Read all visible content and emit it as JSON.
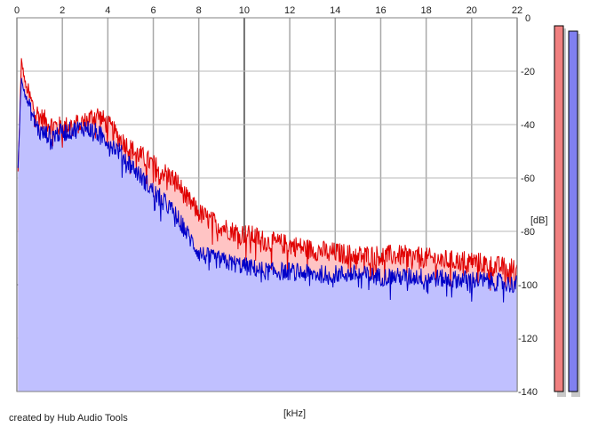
{
  "chart_data": {
    "type": "area",
    "xlabel": "[kHz]",
    "ylabel": "[dB]",
    "xlim": [
      0,
      22
    ],
    "ylim": [
      -140,
      0
    ],
    "x_ticks": [
      0,
      2,
      4,
      6,
      8,
      10,
      12,
      14,
      16,
      18,
      20,
      22
    ],
    "y_ticks": [
      0,
      -20,
      -40,
      -60,
      -80,
      -100,
      -120,
      -140
    ],
    "grid": true,
    "series": [
      {
        "color": "#e00000",
        "fill": "#ffc4c4",
        "x": [
          0.05,
          0.2,
          0.4,
          0.7,
          1,
          1.5,
          2,
          2.5,
          3,
          3.5,
          4,
          4.5,
          5,
          5.5,
          6,
          6.5,
          7,
          7.5,
          8,
          8.5,
          9,
          9.5,
          10,
          10.5,
          11,
          12,
          13,
          14,
          15,
          16,
          17,
          18,
          19,
          20,
          21,
          22
        ],
        "values": [
          -58,
          -16,
          -26,
          -33,
          -37,
          -40,
          -41,
          -40,
          -39,
          -36,
          -40,
          -45,
          -49,
          -52,
          -55,
          -58,
          -61,
          -68,
          -73,
          -76,
          -78,
          -80,
          -81,
          -82,
          -84,
          -85,
          -87,
          -88,
          -89,
          -89,
          -89,
          -90,
          -91,
          -91,
          -93,
          -94
        ]
      },
      {
        "color": "#0000c8",
        "fill": "#c0c0ff",
        "x": [
          0.05,
          0.2,
          0.4,
          0.7,
          1,
          1.5,
          2,
          2.5,
          3,
          3.5,
          4,
          4.5,
          5,
          5.5,
          6,
          6.5,
          7,
          7.5,
          8,
          8.5,
          9,
          9.5,
          10,
          10.5,
          11,
          12,
          13,
          14,
          15,
          16,
          17,
          18,
          19,
          20,
          21,
          22
        ],
        "values": [
          -55,
          -22,
          -30,
          -37,
          -43,
          -44,
          -43,
          -42,
          -41,
          -43,
          -46,
          -50,
          -55,
          -60,
          -65,
          -69,
          -74,
          -81,
          -88,
          -90,
          -91,
          -92,
          -93,
          -94,
          -95,
          -95,
          -96,
          -96,
          -96,
          -97,
          -97,
          -97,
          -98,
          -98,
          -99,
          -100
        ]
      }
    ],
    "level_meters": [
      {
        "color": "#f08080",
        "value": -3
      },
      {
        "color": "#8080f0",
        "value": -5
      }
    ]
  },
  "footer": {
    "credit": "created by Hub Audio Tools"
  }
}
